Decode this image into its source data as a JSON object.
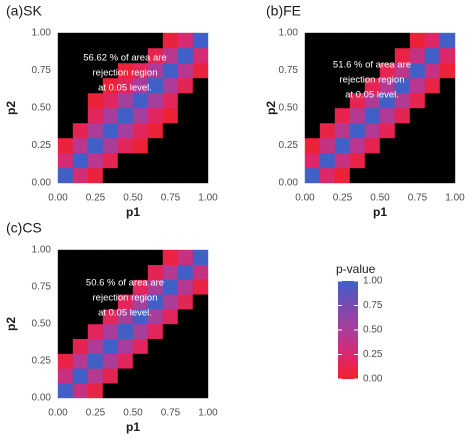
{
  "chart_data": [
    {
      "type": "heatmap",
      "title": "(a)SK",
      "xlabel": "p1",
      "ylabel": "p2",
      "annotation": [
        "56.62  % of area are",
        "rejection region",
        "at 0.05 level."
      ],
      "xlim": [
        0,
        1
      ],
      "ylim": [
        0,
        1
      ],
      "xticks": [
        {
          "value": 0,
          "label": "0.00"
        },
        {
          "value": 0.25,
          "label": "0.25"
        },
        {
          "value": 0.5,
          "label": "0.50"
        },
        {
          "value": 0.75,
          "label": "0.75"
        },
        {
          "value": 1,
          "label": "1.00"
        }
      ],
      "yticks": [
        {
          "value": 0,
          "label": "0.00"
        },
        {
          "value": 0.25,
          "label": "0.25"
        },
        {
          "value": 0.5,
          "label": "0.50"
        },
        {
          "value": 0.75,
          "label": "0.75"
        },
        {
          "value": 1,
          "label": "1.00"
        }
      ],
      "x": [
        0.05,
        0.15,
        0.25,
        0.35,
        0.45,
        0.55,
        0.65,
        0.75,
        0.85,
        0.95
      ],
      "y": [
        0.05,
        0.15,
        0.25,
        0.35,
        0.45,
        0.55,
        0.65,
        0.75,
        0.85,
        0.95
      ],
      "z": [
        [
          1,
          0.28,
          0.07,
          0.02,
          0,
          0,
          0,
          0,
          0,
          0
        ],
        [
          0.28,
          1,
          0.42,
          0.14,
          0.03,
          0,
          0,
          0,
          0,
          0
        ],
        [
          0.07,
          0.42,
          1,
          0.48,
          0.18,
          0.05,
          0,
          0,
          0,
          0
        ],
        [
          0.02,
          0.14,
          0.48,
          1,
          0.51,
          0.19,
          0.05,
          0,
          0,
          0
        ],
        [
          0,
          0.03,
          0.18,
          0.51,
          1,
          0.52,
          0.19,
          0.05,
          0,
          0
        ],
        [
          0,
          0,
          0.05,
          0.19,
          0.52,
          1,
          0.51,
          0.18,
          0.03,
          0
        ],
        [
          0,
          0,
          0,
          0.05,
          0.19,
          0.51,
          1,
          0.48,
          0.14,
          0.02
        ],
        [
          0,
          0,
          0,
          0,
          0.05,
          0.18,
          0.48,
          1,
          0.42,
          0.07
        ],
        [
          0,
          0,
          0,
          0,
          0,
          0.03,
          0.14,
          0.42,
          1,
          0.28
        ],
        [
          0,
          0,
          0,
          0,
          0,
          0,
          0.02,
          0.07,
          0.28,
          1
        ]
      ],
      "level": 0.05,
      "rejection_color": "#000000"
    },
    {
      "type": "heatmap",
      "title": "(b)FE",
      "xlabel": "p1",
      "ylabel": "p2",
      "annotation": [
        "51.6  % of area are",
        "rejection region",
        "at 0.05 level."
      ],
      "xlim": [
        0,
        1
      ],
      "ylim": [
        0,
        1
      ],
      "xticks": [
        {
          "value": 0,
          "label": "0.00"
        },
        {
          "value": 0.25,
          "label": "0.25"
        },
        {
          "value": 0.5,
          "label": "0.50"
        },
        {
          "value": 0.75,
          "label": "0.75"
        },
        {
          "value": 1,
          "label": "1.00"
        }
      ],
      "yticks": [
        {
          "value": 0,
          "label": "0.00"
        },
        {
          "value": 0.25,
          "label": "0.25"
        },
        {
          "value": 0.5,
          "label": "0.50"
        },
        {
          "value": 0.75,
          "label": "0.75"
        },
        {
          "value": 1,
          "label": "1.00"
        }
      ],
      "x": [
        0.05,
        0.15,
        0.25,
        0.35,
        0.45,
        0.55,
        0.65,
        0.75,
        0.85,
        0.95
      ],
      "y": [
        0.05,
        0.15,
        0.25,
        0.35,
        0.45,
        0.55,
        0.65,
        0.75,
        0.85,
        0.95
      ],
      "z": [
        [
          1,
          0.22,
          0.05,
          0.01,
          0,
          0,
          0,
          0,
          0,
          0
        ],
        [
          0.22,
          1,
          0.36,
          0.1,
          0.02,
          0,
          0,
          0,
          0,
          0
        ],
        [
          0.05,
          0.36,
          1,
          0.42,
          0.13,
          0.03,
          0,
          0,
          0,
          0
        ],
        [
          0.01,
          0.1,
          0.42,
          1,
          0.45,
          0.14,
          0.03,
          0,
          0,
          0
        ],
        [
          0,
          0.02,
          0.13,
          0.45,
          1,
          0.46,
          0.14,
          0.03,
          0,
          0
        ],
        [
          0,
          0,
          0.03,
          0.14,
          0.46,
          1,
          0.45,
          0.13,
          0.02,
          0
        ],
        [
          0,
          0,
          0,
          0.03,
          0.14,
          0.45,
          1,
          0.42,
          0.1,
          0.01
        ],
        [
          0,
          0,
          0,
          0,
          0.03,
          0.13,
          0.42,
          1,
          0.36,
          0.05
        ],
        [
          0,
          0,
          0,
          0,
          0,
          0.02,
          0.1,
          0.36,
          1,
          0.22
        ],
        [
          0,
          0,
          0,
          0,
          0,
          0,
          0.01,
          0.05,
          0.22,
          1
        ]
      ],
      "level": 0.05,
      "rejection_color": "#000000"
    },
    {
      "type": "heatmap",
      "title": "(c)CS",
      "xlabel": "p1",
      "ylabel": "p2",
      "annotation": [
        "50.6  % of area are",
        "rejection region",
        "at 0.05 level."
      ],
      "xlim": [
        0,
        1
      ],
      "ylim": [
        0,
        1
      ],
      "xticks": [
        {
          "value": 0,
          "label": "0.00"
        },
        {
          "value": 0.25,
          "label": "0.25"
        },
        {
          "value": 0.5,
          "label": "0.50"
        },
        {
          "value": 0.75,
          "label": "0.75"
        },
        {
          "value": 1,
          "label": "1.00"
        }
      ],
      "yticks": [
        {
          "value": 0,
          "label": "0.00"
        },
        {
          "value": 0.25,
          "label": "0.25"
        },
        {
          "value": 0.5,
          "label": "0.50"
        },
        {
          "value": 0.75,
          "label": "0.75"
        },
        {
          "value": 1,
          "label": "1.00"
        }
      ],
      "x": [
        0.05,
        0.15,
        0.25,
        0.35,
        0.45,
        0.55,
        0.65,
        0.75,
        0.85,
        0.95
      ],
      "y": [
        0.05,
        0.15,
        0.25,
        0.35,
        0.45,
        0.55,
        0.65,
        0.75,
        0.85,
        0.95
      ],
      "z": [
        [
          1,
          0.35,
          0.1,
          0.03,
          0,
          0,
          0,
          0,
          0,
          0
        ],
        [
          0.35,
          1,
          0.44,
          0.15,
          0.04,
          0,
          0,
          0,
          0,
          0
        ],
        [
          0.1,
          0.44,
          1,
          0.48,
          0.17,
          0.04,
          0,
          0,
          0,
          0
        ],
        [
          0.03,
          0.15,
          0.48,
          1,
          0.5,
          0.17,
          0.04,
          0,
          0,
          0
        ],
        [
          0,
          0.04,
          0.17,
          0.5,
          1,
          0.5,
          0.17,
          0.04,
          0,
          0
        ],
        [
          0,
          0,
          0.04,
          0.17,
          0.5,
          1,
          0.5,
          0.17,
          0.04,
          0
        ],
        [
          0,
          0,
          0,
          0.04,
          0.17,
          0.5,
          1,
          0.48,
          0.15,
          0.03
        ],
        [
          0,
          0,
          0,
          0,
          0.04,
          0.17,
          0.48,
          1,
          0.44,
          0.1
        ],
        [
          0,
          0,
          0,
          0,
          0,
          0.04,
          0.15,
          0.44,
          1,
          0.35
        ],
        [
          0,
          0,
          0,
          0,
          0,
          0,
          0.03,
          0.1,
          0.35,
          1
        ]
      ],
      "level": 0.05,
      "rejection_color": "#000000"
    }
  ],
  "legend": {
    "title": "p-value",
    "lim": [
      0,
      1
    ],
    "ticks": [
      {
        "value": 0,
        "label": "0.00"
      },
      {
        "value": 0.25,
        "label": "0.25"
      },
      {
        "value": 0.5,
        "label": "0.50"
      },
      {
        "value": 0.75,
        "label": "0.75"
      },
      {
        "value": 1,
        "label": "1.00"
      }
    ],
    "colorscale": [
      {
        "value": 0,
        "color": "#f0202a"
      },
      {
        "value": 0.25,
        "color": "#dc2870"
      },
      {
        "value": 0.5,
        "color": "#a83e9c"
      },
      {
        "value": 0.75,
        "color": "#7a4ab0"
      },
      {
        "value": 1,
        "color": "#4060c8"
      }
    ]
  }
}
